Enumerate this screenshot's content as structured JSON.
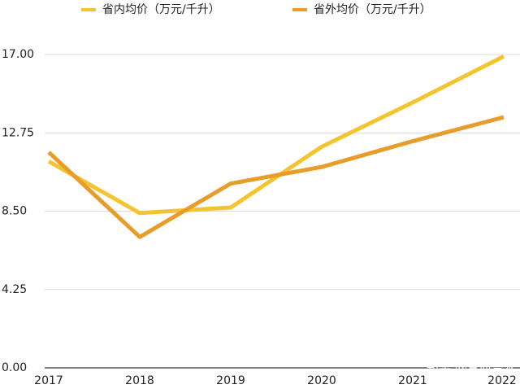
{
  "chart_data": {
    "type": "line",
    "categories": [
      "2017",
      "2018",
      "2019",
      "2020",
      "2021",
      "2022"
    ],
    "series": [
      {
        "name": "省内均价（万元/千升）",
        "color": "#f4c430",
        "values": [
          11.2,
          8.4,
          8.7,
          12.0,
          14.4,
          16.9
        ]
      },
      {
        "name": "省外均价（万元/千升）",
        "color": "#e89c2a",
        "values": [
          11.7,
          7.1,
          10.0,
          10.9,
          12.3,
          13.6
        ]
      }
    ],
    "ylim": [
      0,
      17
    ],
    "yticks": [
      {
        "value": 0,
        "label": "0.00"
      },
      {
        "value": 4.25,
        "label": "4.25"
      },
      {
        "value": 8.5,
        "label": "8.50"
      },
      {
        "value": 12.75,
        "label": "12.75"
      },
      {
        "value": 17,
        "label": "17.00"
      }
    ],
    "grid": true,
    "legend": "top",
    "watermark": "知乎 @三酉资本"
  }
}
